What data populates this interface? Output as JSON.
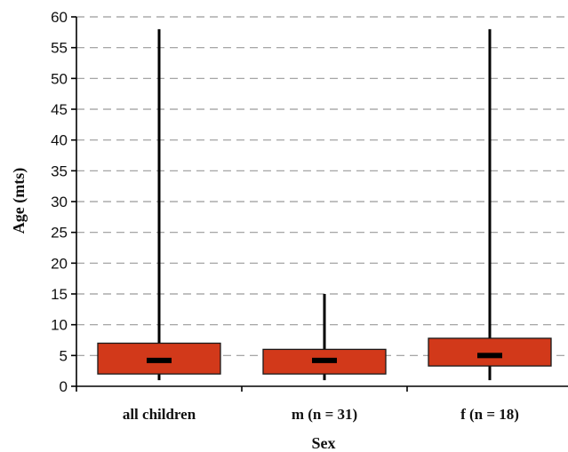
{
  "chart_data": {
    "type": "boxplot",
    "title": "",
    "xlabel": "Sex",
    "ylabel": "Age (mts)",
    "ylim": [
      0,
      60
    ],
    "yticks": [
      0,
      5,
      10,
      15,
      20,
      25,
      30,
      35,
      40,
      45,
      50,
      55,
      60
    ],
    "grid": true,
    "categories": [
      "all children",
      "m (n = 31)",
      "f (n = 18)"
    ],
    "boxes": [
      {
        "category": "all children",
        "min": 1,
        "q1": 2,
        "median": 4.2,
        "q3": 7,
        "max": 58
      },
      {
        "category": "m (n = 31)",
        "min": 1,
        "q1": 2,
        "median": 4.2,
        "q3": 6,
        "max": 15
      },
      {
        "category": "f (n = 18)",
        "min": 1,
        "q1": 3.3,
        "median": 5,
        "q3": 7.8,
        "max": 58
      }
    ],
    "box_color": "#d2391a",
    "median_color": "#000000"
  }
}
